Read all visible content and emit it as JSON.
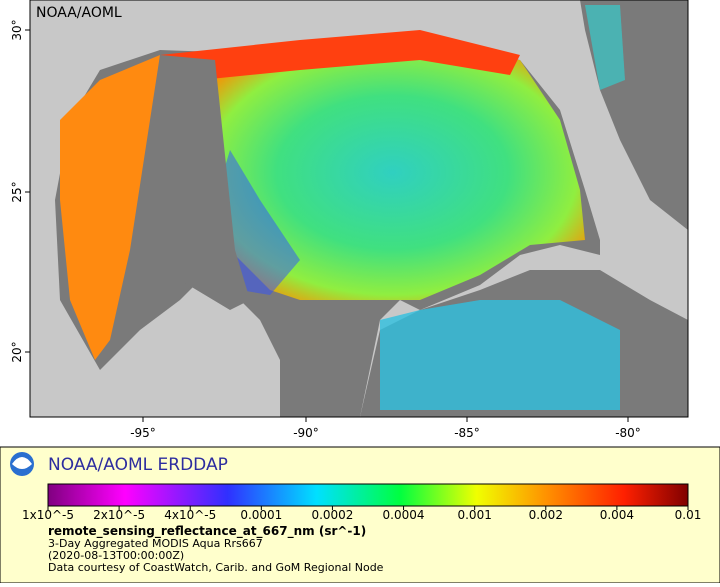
{
  "map": {
    "watermark": "NOAA/AOML",
    "x_axis_labels": [
      "-95°",
      "-90°",
      "-85°",
      "-80°"
    ],
    "y_axis_labels": [
      "30°",
      "25°",
      "20°"
    ]
  },
  "legend": {
    "title": "NOAA/AOML ERDDAP",
    "colorbar_labels": [
      "1x10^-5",
      "2x10^-5",
      "4x10^-5",
      "0.0001",
      "0.0002",
      "0.0004",
      "0.001",
      "0.002",
      "0.004",
      "0.01"
    ],
    "variable": "remote_sensing_reflectance_at_667_nm (sr^-1)",
    "lines": [
      "3-Day Aggregated MODIS Aqua Rrs667",
      "(2020-08-13T00:00:00Z)",
      "Data courtesy of CoastWatch, Carib. and GoM Regional Node"
    ]
  }
}
